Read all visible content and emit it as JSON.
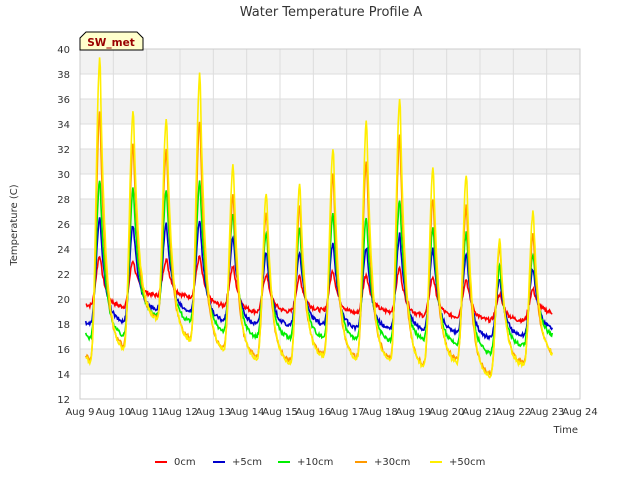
{
  "chart_data": {
    "type": "line",
    "title": "Water Temperature Profile A",
    "xlabel": "Time",
    "ylabel": "Temperature (C)",
    "station_label": "SW_met",
    "ylim": [
      12,
      40
    ],
    "yticks": [
      12,
      14,
      16,
      18,
      20,
      22,
      24,
      26,
      28,
      30,
      32,
      34,
      36,
      38,
      40
    ],
    "xlim": [
      "2023-08-09",
      "2023-08-24"
    ],
    "xticks": [
      "Aug 9",
      "Aug 10",
      "Aug 11",
      "Aug 12",
      "Aug 13",
      "Aug 14",
      "Aug 15",
      "Aug 16",
      "Aug 17",
      "Aug 18",
      "Aug 19",
      "Aug 20",
      "Aug 21",
      "Aug 22",
      "Aug 23",
      "Aug 24"
    ],
    "grid": true,
    "legend_position": "bottom",
    "day_labels": [
      "Aug 9",
      "Aug 10",
      "Aug 11",
      "Aug 12",
      "Aug 13",
      "Aug 14",
      "Aug 15",
      "Aug 16",
      "Aug 17",
      "Aug 18",
      "Aug 19",
      "Aug 20",
      "Aug 21",
      "Aug 22",
      "Aug 23"
    ],
    "series": [
      {
        "name": "0cm",
        "color": "#ff0000",
        "daily_max": [
          23.5,
          23.1,
          23.2,
          23.4,
          22.6,
          22.0,
          21.8,
          22.3,
          22.0,
          22.5,
          21.8,
          21.6,
          20.4,
          20.8,
          20.8
        ],
        "daily_min": [
          19.5,
          19.4,
          20.3,
          20.2,
          19.5,
          19.0,
          19.0,
          19.1,
          18.9,
          19.0,
          18.7,
          18.6,
          18.3,
          18.3,
          18.9
        ]
      },
      {
        "name": "+5cm",
        "color": "#0000cc",
        "daily_max": [
          26.5,
          26.0,
          26.0,
          26.4,
          25.0,
          23.8,
          23.8,
          24.6,
          24.2,
          25.2,
          24.0,
          23.6,
          21.6,
          22.4,
          22.4
        ],
        "daily_min": [
          18.0,
          18.2,
          19.2,
          19.0,
          18.3,
          18.0,
          17.9,
          18.0,
          17.7,
          17.6,
          17.6,
          17.3,
          16.9,
          17.1,
          17.6
        ]
      },
      {
        "name": "+10cm",
        "color": "#00ee00",
        "daily_max": [
          29.6,
          28.9,
          28.8,
          29.5,
          26.9,
          25.4,
          25.7,
          26.9,
          26.5,
          28.0,
          25.8,
          25.4,
          22.7,
          23.7,
          23.7
        ],
        "daily_min": [
          16.9,
          17.1,
          18.7,
          18.2,
          17.5,
          17.0,
          16.9,
          17.0,
          16.8,
          16.7,
          16.8,
          16.4,
          15.7,
          16.3,
          17.0
        ]
      },
      {
        "name": "+30cm",
        "color": "#ff9900",
        "daily_max": [
          35.0,
          32.5,
          32.0,
          34.4,
          28.5,
          27.1,
          27.7,
          30.0,
          31.2,
          33.2,
          28.2,
          27.5,
          24.4,
          25.2,
          25.2
        ],
        "daily_min": [
          15.2,
          16.3,
          18.5,
          16.9,
          16.1,
          15.4,
          15.1,
          15.6,
          15.4,
          15.3,
          14.8,
          15.2,
          14.0,
          14.9,
          15.6
        ]
      },
      {
        "name": "+50cm",
        "color": "#ffee00",
        "daily_max": [
          39.5,
          35.2,
          34.6,
          38.2,
          30.9,
          28.6,
          29.3,
          32.2,
          34.3,
          36.3,
          30.6,
          30.1,
          25.0,
          27.1,
          27.1
        ],
        "daily_min": [
          14.9,
          16.0,
          18.4,
          16.7,
          15.9,
          15.2,
          14.9,
          15.4,
          15.2,
          15.0,
          14.6,
          14.9,
          13.8,
          14.7,
          15.4
        ]
      }
    ]
  }
}
